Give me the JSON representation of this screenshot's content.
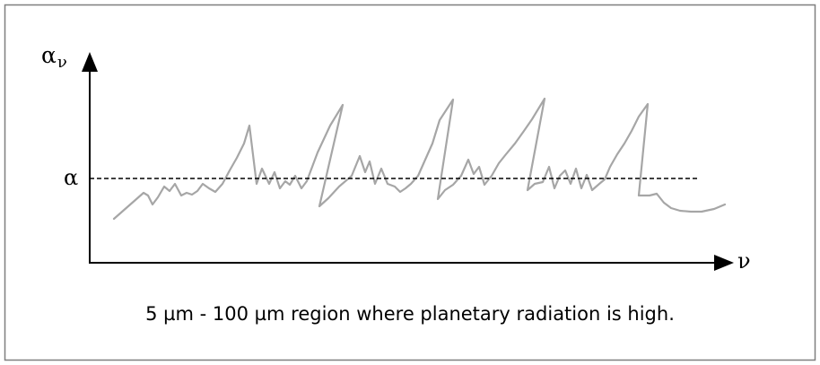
{
  "diagram": {
    "y_axis_label": {
      "symbol": "α",
      "subscript": "ν"
    },
    "x_axis_label": "ν",
    "reference_line_label": "α",
    "caption": "5 µm - 100 µm region where planetary radiation is high.",
    "colors": {
      "axes": "#000000",
      "reference_line": "#000000",
      "absorption_curve": "#a6a6a6",
      "border": "#7f7f7f"
    }
  }
}
